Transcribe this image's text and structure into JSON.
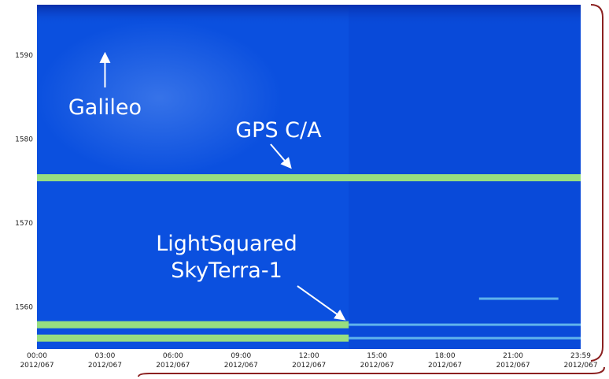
{
  "chart_data": {
    "type": "heatmap",
    "title": "",
    "xlabel": "",
    "ylabel": "",
    "x_range": [
      "00:00",
      "23:59"
    ],
    "ylim": [
      1555,
      1596
    ],
    "grid": false,
    "x_ticks": [
      {
        "time": "00:00",
        "date": "2012/067"
      },
      {
        "time": "03:00",
        "date": "2012/067"
      },
      {
        "time": "06:00",
        "date": "2012/067"
      },
      {
        "time": "09:00",
        "date": "2012/067"
      },
      {
        "time": "12:00",
        "date": "2012/067"
      },
      {
        "time": "15:00",
        "date": "2012/067"
      },
      {
        "time": "18:00",
        "date": "2012/067"
      },
      {
        "time": "21:00",
        "date": "2012/067"
      },
      {
        "time": "23:59",
        "date": "2012/067"
      }
    ],
    "y_ticks": [
      1560,
      1570,
      1580,
      1590
    ],
    "colors": {
      "background": "#0b50df",
      "strong_band": "#9fe67a",
      "weak_band": "#6fc6ee",
      "annotation": "#ffffff",
      "bracket": "#8b2020"
    },
    "bands": [
      {
        "freq": 1575.4,
        "start": "00:00",
        "end": "23:59",
        "strength": "strong"
      },
      {
        "freq": 1557.9,
        "start": "00:00",
        "end": "13:45",
        "strength": "strong"
      },
      {
        "freq": 1557.9,
        "start": "13:45",
        "end": "23:59",
        "strength": "weak"
      },
      {
        "freq": 1556.3,
        "start": "00:00",
        "end": "13:45",
        "strength": "strong"
      },
      {
        "freq": 1556.3,
        "start": "13:45",
        "end": "23:59",
        "strength": "weak"
      },
      {
        "freq": 1561.0,
        "start": "19:30",
        "end": "23:00",
        "strength": "weak"
      }
    ],
    "annotations": [
      {
        "text": "Galileo",
        "freq": 1590.5,
        "time": "03:00"
      },
      {
        "text": "GPS C/A",
        "freq": 1576.0,
        "time": "11:00"
      },
      {
        "text": [
          "LightSquared",
          "SkyTerra-1"
        ],
        "freq": 1558.0,
        "time": "13:45"
      }
    ]
  }
}
